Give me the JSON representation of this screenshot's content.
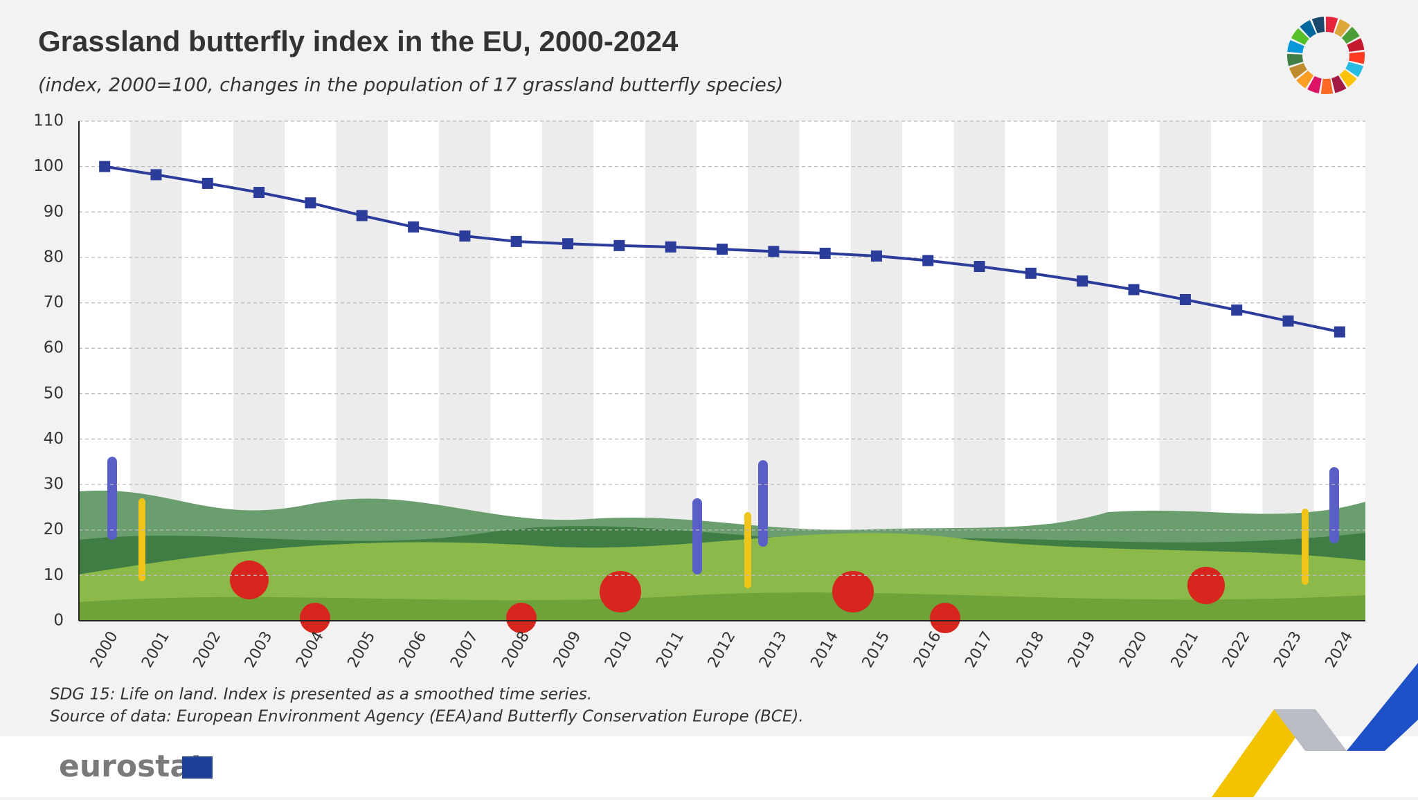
{
  "chart_data": {
    "type": "line",
    "title": "Grassland butterfly index in the EU, 2000-2024",
    "subtitle": "(index, 2000=100, changes in the population of 17 grassland butterfly species)",
    "x": [
      2000,
      2001,
      2002,
      2003,
      2004,
      2005,
      2006,
      2007,
      2008,
      2009,
      2010,
      2011,
      2012,
      2013,
      2014,
      2015,
      2016,
      2017,
      2018,
      2019,
      2020,
      2021,
      2022,
      2023,
      2024
    ],
    "series": [
      {
        "name": "Grassland butterfly index",
        "color": "#2b3c9b",
        "values": [
          100,
          98.2,
          96.3,
          94.3,
          92.0,
          89.2,
          86.7,
          84.7,
          83.5,
          83.0,
          82.6,
          82.3,
          81.8,
          81.3,
          80.9,
          80.3,
          79.3,
          78.0,
          76.5,
          74.8,
          72.9,
          70.7,
          68.4,
          66.0,
          63.6
        ]
      }
    ],
    "ylim": [
      0,
      110
    ],
    "yticks": [
      0,
      10,
      20,
      30,
      40,
      50,
      60,
      70,
      80,
      90,
      100,
      110
    ],
    "grid": true,
    "notes": [
      "SDG 15: Life on land.  Index is presented as a smoothed time series.",
      "Source of data: European Environment Agency (EEA)and Butterfly Conservation Europe (BCE)."
    ],
    "brand": "eurostat"
  }
}
